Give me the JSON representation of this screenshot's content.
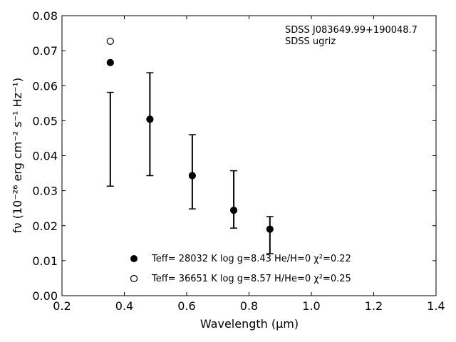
{
  "chart_data": {
    "type": "scatter",
    "xlabel": "Wavelength (μm)",
    "ylabel": "fν (10⁻²⁶ erg cm⁻² s⁻¹ Hz⁻¹)",
    "xlim": [
      0.2,
      1.4
    ],
    "ylim": [
      0.0,
      0.08
    ],
    "x_ticks": [
      "0.2",
      "0.4",
      "0.6",
      "0.8",
      "1.0",
      "1.2",
      "1.4"
    ],
    "y_ticks": [
      "0.00",
      "0.01",
      "0.02",
      "0.03",
      "0.04",
      "0.05",
      "0.06",
      "0.07",
      "0.08"
    ],
    "grid": false,
    "annotations": [
      "SDSS J083649.99+190048.7",
      "SDSS ugriz"
    ],
    "observed": {
      "x": [
        0.355,
        0.482,
        0.618,
        0.751,
        0.867
      ],
      "y": [
        0.0447,
        0.049,
        0.0354,
        0.0275,
        0.0173
      ],
      "yerr": [
        0.0134,
        0.0147,
        0.0106,
        0.0082,
        0.0053
      ]
    },
    "series": [
      {
        "name": "Teff= 28032 K  log g=8.43  He/H=0  χ²=0.22",
        "marker": "filled-circle",
        "x": [
          0.355,
          0.482,
          0.618,
          0.751,
          0.867
        ],
        "y": [
          0.0666,
          0.0504,
          0.0343,
          0.0244,
          0.019
        ]
      },
      {
        "name": "Teff= 36651 K  log g=8.57  H/He=0  χ²=0.25",
        "marker": "open-circle",
        "x": [
          0.355
        ],
        "y": [
          0.0727
        ]
      }
    ],
    "legend_placement": "lower-center"
  }
}
